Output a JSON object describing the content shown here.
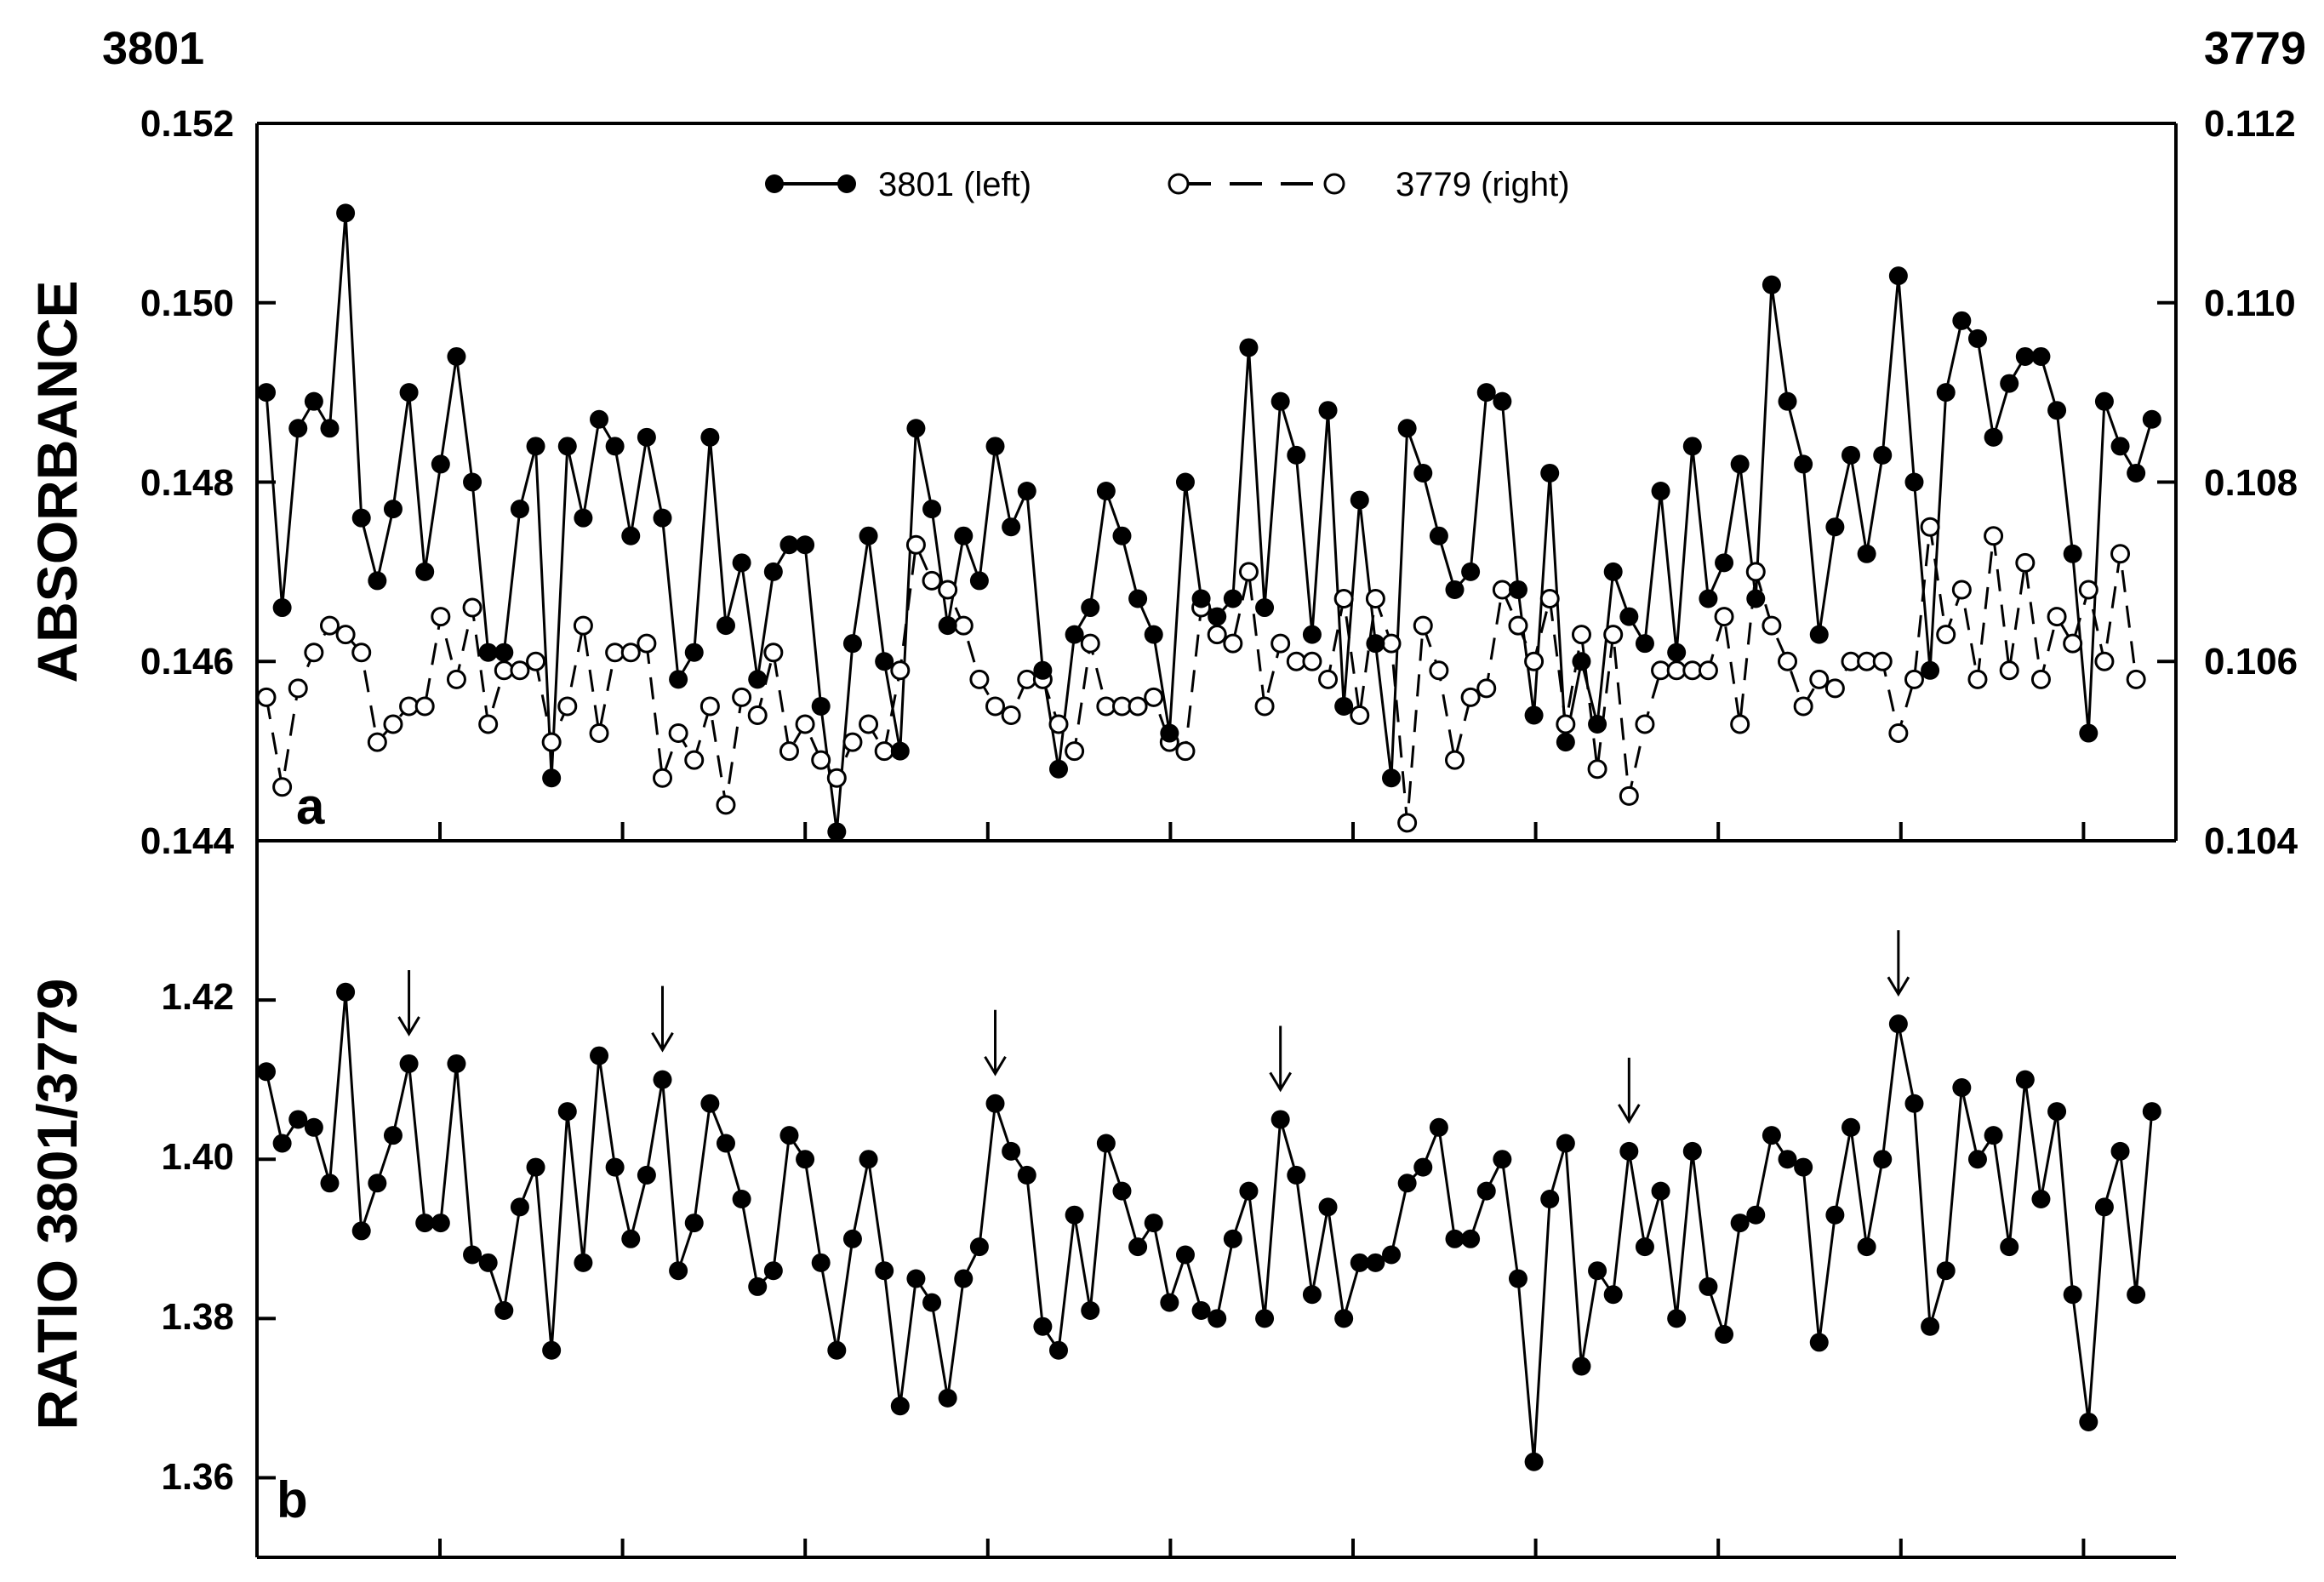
{
  "chart_data": [
    {
      "type": "line",
      "panel_label": "a",
      "ylabel": "ABSORBANCE",
      "corner_left": "3801",
      "corner_right": "3779",
      "ylim_left": [
        0.144,
        0.152
      ],
      "ylim_right": [
        0.104,
        0.112
      ],
      "yticks_left": [
        "0.144",
        "0.146",
        "0.148",
        "0.150",
        "0.152"
      ],
      "yticks_right": [
        "0.104",
        "0.106",
        "0.108",
        "0.110",
        "0.112"
      ],
      "legend_position": "top",
      "series": [
        {
          "name": "3801 (left)",
          "axis": "left",
          "marker": "filled-circle",
          "line": "solid",
          "values": [
            0.149,
            0.1466,
            0.1486,
            0.1489,
            0.1486,
            0.151,
            0.1476,
            0.1469,
            0.1477,
            0.149,
            0.147,
            0.1482,
            0.1494,
            0.148,
            0.1461,
            0.1461,
            0.1477,
            0.1484,
            0.1447,
            0.1484,
            0.1476,
            0.1487,
            0.1484,
            0.1474,
            0.1485,
            0.1476,
            0.1458,
            0.1461,
            0.1485,
            0.1464,
            0.1471,
            0.1458,
            0.147,
            0.1473,
            0.1473,
            0.1455,
            0.1441,
            0.1462,
            0.1474,
            0.146,
            0.145,
            0.1486,
            0.1477,
            0.1464,
            0.1474,
            0.1469,
            0.1484,
            0.1475,
            0.1479,
            0.1459,
            0.1448,
            0.1463,
            0.1466,
            0.1479,
            0.1474,
            0.1467,
            0.1463,
            0.1452,
            0.148,
            0.1467,
            0.1465,
            0.1467,
            0.1495,
            0.1466,
            0.1489,
            0.1483,
            0.1463,
            0.1488,
            0.1455,
            0.1478,
            0.1462,
            0.1447,
            0.1486,
            0.1481,
            0.1474,
            0.1468,
            0.147,
            0.149,
            0.1489,
            0.1468,
            0.1454,
            0.1481,
            0.1451,
            0.146,
            0.1453,
            0.147,
            0.1465,
            0.1462,
            0.1479,
            0.1461,
            0.1484,
            0.1467,
            0.1471,
            0.1482,
            0.1467,
            0.1502,
            0.1489,
            0.1482,
            0.1463,
            0.1475,
            0.1483,
            0.1472,
            0.1483,
            0.1503,
            0.148,
            0.1459,
            0.149,
            0.1498,
            0.1496,
            0.1485,
            0.1491,
            0.1494,
            0.1494,
            0.1488,
            0.1472,
            0.1452,
            0.1489,
            0.1484,
            0.1481,
            0.1487
          ]
        },
        {
          "name": "3779 (right)",
          "axis": "right",
          "marker": "open-circle",
          "line": "dashed",
          "values": [
            0.1056,
            0.1046,
            0.1057,
            0.1061,
            0.1064,
            0.1063,
            0.1061,
            0.1051,
            0.1053,
            0.1055,
            0.1055,
            0.1065,
            0.1058,
            0.1066,
            0.1053,
            0.1059,
            0.1059,
            0.106,
            0.1051,
            0.1055,
            0.1064,
            0.1052,
            0.1061,
            0.1061,
            0.1062,
            0.1047,
            0.1052,
            0.1049,
            0.1055,
            0.1044,
            0.1056,
            0.1054,
            0.1061,
            0.105,
            0.1053,
            0.1049,
            0.1047,
            0.1051,
            0.1053,
            0.105,
            0.1059,
            0.1073,
            0.1069,
            0.1068,
            0.1064,
            0.1058,
            0.1055,
            0.1054,
            0.1058,
            0.1058,
            0.1053,
            0.105,
            0.1062,
            0.1055,
            0.1055,
            0.1055,
            0.1056,
            0.1051,
            0.105,
            0.1066,
            0.1063,
            0.1062,
            0.107,
            0.1055,
            0.1062,
            0.106,
            0.106,
            0.1058,
            0.1067,
            0.1054,
            0.1067,
            0.1062,
            0.1042,
            0.1064,
            0.1059,
            0.1049,
            0.1056,
            0.1057,
            0.1068,
            0.1064,
            0.106,
            0.1067,
            0.1053,
            0.1063,
            0.1048,
            0.1063,
            0.1045,
            0.1053,
            0.1059,
            0.1059,
            0.1059,
            0.1059,
            0.1065,
            0.1053,
            0.107,
            0.1064,
            0.106,
            0.1055,
            0.1058,
            0.1057,
            0.106,
            0.106,
            0.106,
            0.1052,
            0.1058,
            0.1075,
            0.1063,
            0.1068,
            0.1058,
            0.1074,
            0.1059,
            0.1071,
            0.1058,
            0.1065,
            0.1062,
            0.1068,
            0.106,
            0.1072,
            0.1058
          ]
        }
      ]
    },
    {
      "type": "line",
      "panel_label": "b",
      "ylabel": "RATIO 3801/3779",
      "ylim": [
        1.35,
        1.44
      ],
      "yticks": [
        "1.36",
        "1.38",
        "1.40",
        "1.42"
      ],
      "series": [
        {
          "marker": "filled-circle",
          "line": "solid",
          "values": [
            1.411,
            1.402,
            1.405,
            1.404,
            1.397,
            1.421,
            1.391,
            1.397,
            1.403,
            1.412,
            1.392,
            1.392,
            1.412,
            1.388,
            1.387,
            1.381,
            1.394,
            1.399,
            1.376,
            1.406,
            1.387,
            1.413,
            1.399,
            1.39,
            1.398,
            1.41,
            1.386,
            1.392,
            1.407,
            1.402,
            1.395,
            1.384,
            1.386,
            1.403,
            1.4,
            1.387,
            1.376,
            1.39,
            1.4,
            1.386,
            1.369,
            1.385,
            1.382,
            1.37,
            1.385,
            1.389,
            1.407,
            1.401,
            1.398,
            1.379,
            1.376,
            1.393,
            1.381,
            1.402,
            1.396,
            1.389,
            1.392,
            1.382,
            1.388,
            1.381,
            1.38,
            1.39,
            1.396,
            1.38,
            1.405,
            1.398,
            1.383,
            1.394,
            1.38,
            1.387,
            1.387,
            1.388,
            1.397,
            1.399,
            1.404,
            1.39,
            1.39,
            1.396,
            1.4,
            1.385,
            1.362,
            1.395,
            1.402,
            1.374,
            1.386,
            1.383,
            1.401,
            1.389,
            1.396,
            1.38,
            1.401,
            1.384,
            1.378,
            1.392,
            1.393,
            1.403,
            1.4,
            1.399,
            1.377,
            1.393,
            1.404,
            1.389,
            1.4,
            1.417,
            1.407,
            1.379,
            1.386,
            1.409,
            1.4,
            1.403,
            1.389,
            1.41,
            1.395,
            1.406,
            1.383,
            1.367,
            1.394,
            1.401,
            1.383,
            1.406
          ]
        }
      ],
      "arrow_indices": [
        9,
        25,
        46,
        64,
        86,
        103
      ]
    }
  ]
}
